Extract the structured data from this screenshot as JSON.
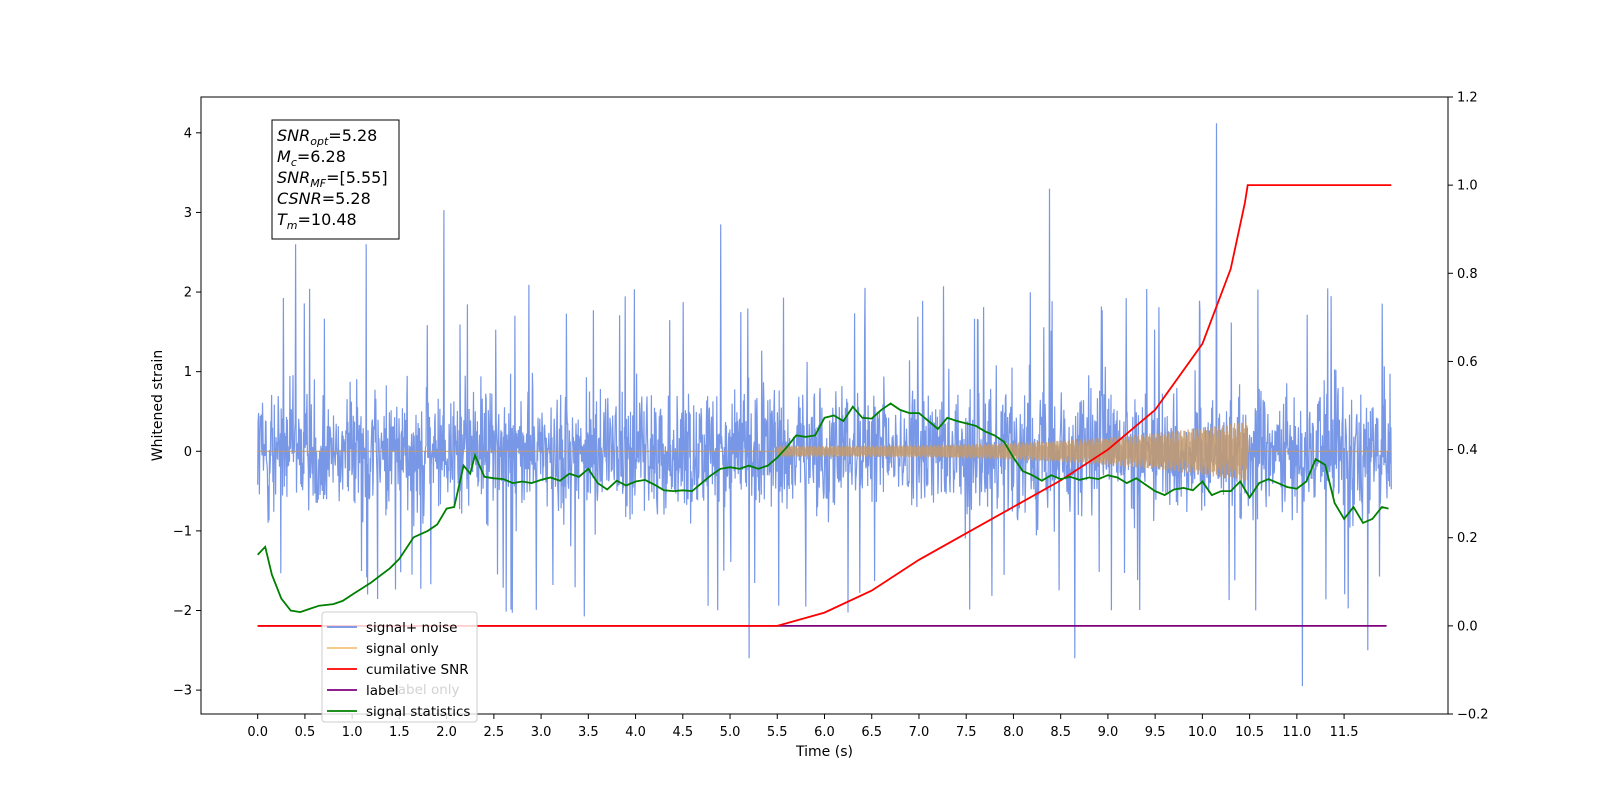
{
  "chart_data": {
    "type": "line",
    "xlabel": "Time (s)",
    "ylabel": "Whitened strain",
    "xlim": [
      -0.6,
      12.6
    ],
    "ylim": [
      -3.3,
      4.45
    ],
    "y2lim": [
      -0.2,
      1.2
    ],
    "x_ticks": [
      0.0,
      0.5,
      1.0,
      1.5,
      2.0,
      2.5,
      3.0,
      3.5,
      4.0,
      4.5,
      5.0,
      5.5,
      6.0,
      6.5,
      7.0,
      7.5,
      8.0,
      8.5,
      9.0,
      9.5,
      10.0,
      10.5,
      11.0,
      11.5
    ],
    "x_tick_labels": [
      "0.0",
      "0.5",
      "1.0",
      "1.5",
      "2.0",
      "2.5",
      "3.0",
      "3.5",
      "4.0",
      "4.5",
      "5.0",
      "5.5",
      "6.0",
      "6.5",
      "7.0",
      "7.5",
      "8.0",
      "8.5",
      "9.0",
      "9.5",
      "10.0",
      "10.5",
      "11.0",
      "11.5"
    ],
    "y_ticks": [
      -3,
      -2,
      -1,
      0,
      1,
      2,
      3,
      4
    ],
    "y_tick_labels": [
      "−3",
      "−2",
      "−1",
      "0",
      "1",
      "2",
      "3",
      "4"
    ],
    "y2_ticks": [
      -0.2,
      0.0,
      0.2,
      0.4,
      0.6,
      0.8,
      1.0,
      1.2
    ],
    "y2_tick_labels": [
      "−0.2",
      "0.0",
      "0.2",
      "0.4",
      "0.6",
      "0.8",
      "1.0",
      "1.2"
    ],
    "grid": false,
    "legend_position": "lower-left",
    "series": [
      {
        "name": "signal+ noise",
        "color": "#7191e6",
        "axis": "left",
        "kind": "noise",
        "x_range": [
          0.0,
          12.0
        ],
        "typical_envelope": [
          -1.2,
          1.3
        ],
        "notable_peaks": [
          {
            "x": 0.4,
            "y": 2.6
          },
          {
            "x": 1.15,
            "y": 2.6
          },
          {
            "x": 1.97,
            "y": 3.03
          },
          {
            "x": 4.9,
            "y": 2.85
          },
          {
            "x": 8.38,
            "y": 3.3
          },
          {
            "x": 10.15,
            "y": 4.12
          },
          {
            "x": 11.06,
            "y": -2.95
          },
          {
            "x": 5.2,
            "y": -2.6
          },
          {
            "x": 8.65,
            "y": -2.6
          },
          {
            "x": 11.75,
            "y": -2.5
          }
        ]
      },
      {
        "name": "signal only",
        "color": "#f5c27a",
        "axis": "left",
        "kind": "chirp",
        "x_range": [
          0.0,
          12.0
        ],
        "chirp_start": 5.5,
        "merger": 10.48,
        "peak_amplitude": 0.38
      },
      {
        "name": "cumilative SNR",
        "color": "#ff0000",
        "axis": "right",
        "x": [
          0.0,
          5.0,
          5.5,
          6.0,
          6.5,
          7.0,
          7.5,
          8.0,
          8.5,
          9.0,
          9.5,
          10.0,
          10.3,
          10.45,
          10.48,
          12.0
        ],
        "y": [
          0.0,
          0.0,
          0.0,
          0.03,
          0.08,
          0.15,
          0.21,
          0.27,
          0.33,
          0.4,
          0.49,
          0.64,
          0.81,
          0.96,
          1.0,
          1.0
        ]
      },
      {
        "name": "label",
        "color": "#7f007f",
        "axis": "right",
        "x": [
          0.0,
          11.95
        ],
        "y": [
          0.0,
          0.0
        ]
      },
      {
        "name": "signal statistics",
        "color": "#008000",
        "axis": "left",
        "x": [
          0.0,
          0.08,
          0.15,
          0.25,
          0.35,
          0.45,
          0.55,
          0.65,
          0.8,
          0.9,
          1.0,
          1.2,
          1.4,
          1.5,
          1.65,
          1.8,
          1.9,
          2.0,
          2.08,
          2.18,
          2.25,
          2.3,
          2.4,
          2.5,
          2.6,
          2.7,
          2.8,
          2.9,
          3.0,
          3.1,
          3.2,
          3.3,
          3.4,
          3.5,
          3.6,
          3.7,
          3.8,
          3.9,
          4.0,
          4.1,
          4.2,
          4.3,
          4.4,
          4.5,
          4.6,
          4.7,
          4.8,
          4.9,
          5.0,
          5.1,
          5.2,
          5.3,
          5.4,
          5.5,
          5.6,
          5.7,
          5.8,
          5.9,
          6.0,
          6.1,
          6.2,
          6.3,
          6.4,
          6.5,
          6.6,
          6.7,
          6.8,
          6.9,
          7.0,
          7.1,
          7.2,
          7.3,
          7.4,
          7.5,
          7.6,
          7.7,
          7.8,
          7.9,
          8.0,
          8.1,
          8.2,
          8.3,
          8.4,
          8.5,
          8.6,
          8.7,
          8.8,
          8.9,
          9.0,
          9.1,
          9.2,
          9.3,
          9.4,
          9.5,
          9.6,
          9.7,
          9.8,
          9.9,
          10.0,
          10.1,
          10.2,
          10.3,
          10.4,
          10.5,
          10.6,
          10.7,
          10.8,
          10.9,
          11.0,
          11.1,
          11.2,
          11.3,
          11.4,
          11.5,
          11.6,
          11.7,
          11.8,
          11.9,
          11.97
        ],
        "y": [
          -1.3,
          -1.2,
          -1.55,
          -1.85,
          -2.0,
          -2.02,
          -1.98,
          -1.94,
          -1.92,
          -1.88,
          -1.8,
          -1.65,
          -1.47,
          -1.35,
          -1.08,
          -1.0,
          -0.92,
          -0.72,
          -0.7,
          -0.18,
          -0.28,
          -0.05,
          -0.32,
          -0.34,
          -0.35,
          -0.4,
          -0.38,
          -0.4,
          -0.36,
          -0.33,
          -0.37,
          -0.28,
          -0.32,
          -0.22,
          -0.4,
          -0.48,
          -0.37,
          -0.43,
          -0.38,
          -0.36,
          -0.42,
          -0.49,
          -0.5,
          -0.49,
          -0.5,
          -0.4,
          -0.3,
          -0.22,
          -0.2,
          -0.22,
          -0.18,
          -0.22,
          -0.18,
          -0.08,
          0.05,
          0.2,
          0.18,
          0.2,
          0.42,
          0.45,
          0.38,
          0.56,
          0.42,
          0.41,
          0.52,
          0.6,
          0.52,
          0.48,
          0.48,
          0.38,
          0.28,
          0.42,
          0.38,
          0.35,
          0.32,
          0.25,
          0.2,
          0.12,
          -0.08,
          -0.25,
          -0.3,
          -0.37,
          -0.3,
          -0.35,
          -0.32,
          -0.36,
          -0.33,
          -0.35,
          -0.3,
          -0.33,
          -0.4,
          -0.34,
          -0.42,
          -0.5,
          -0.55,
          -0.48,
          -0.46,
          -0.49,
          -0.38,
          -0.55,
          -0.5,
          -0.5,
          -0.38,
          -0.58,
          -0.4,
          -0.35,
          -0.4,
          -0.45,
          -0.47,
          -0.38,
          -0.1,
          -0.17,
          -0.65,
          -0.85,
          -0.7,
          -0.9,
          -0.85,
          -0.7,
          -0.72
        ]
      }
    ],
    "annotation_lines": [
      {
        "var": "SNR",
        "sub": "opt",
        "value": "=5.28"
      },
      {
        "var": "M",
        "sub": "c",
        "value": "=6.28"
      },
      {
        "var": "SNR",
        "sub": "MF",
        "value": "=[5.55]"
      },
      {
        "var": "CSNR",
        "sub": "",
        "value": "=5.28"
      },
      {
        "var": "T",
        "sub": "m",
        "value": "=10.48"
      }
    ],
    "legend_entries": [
      "signal+ noise",
      "signal only",
      "cumilative SNR",
      "label",
      "signal statistics"
    ],
    "occluded_legend_text": [
      "label only",
      "label",
      "signal statistics"
    ]
  }
}
